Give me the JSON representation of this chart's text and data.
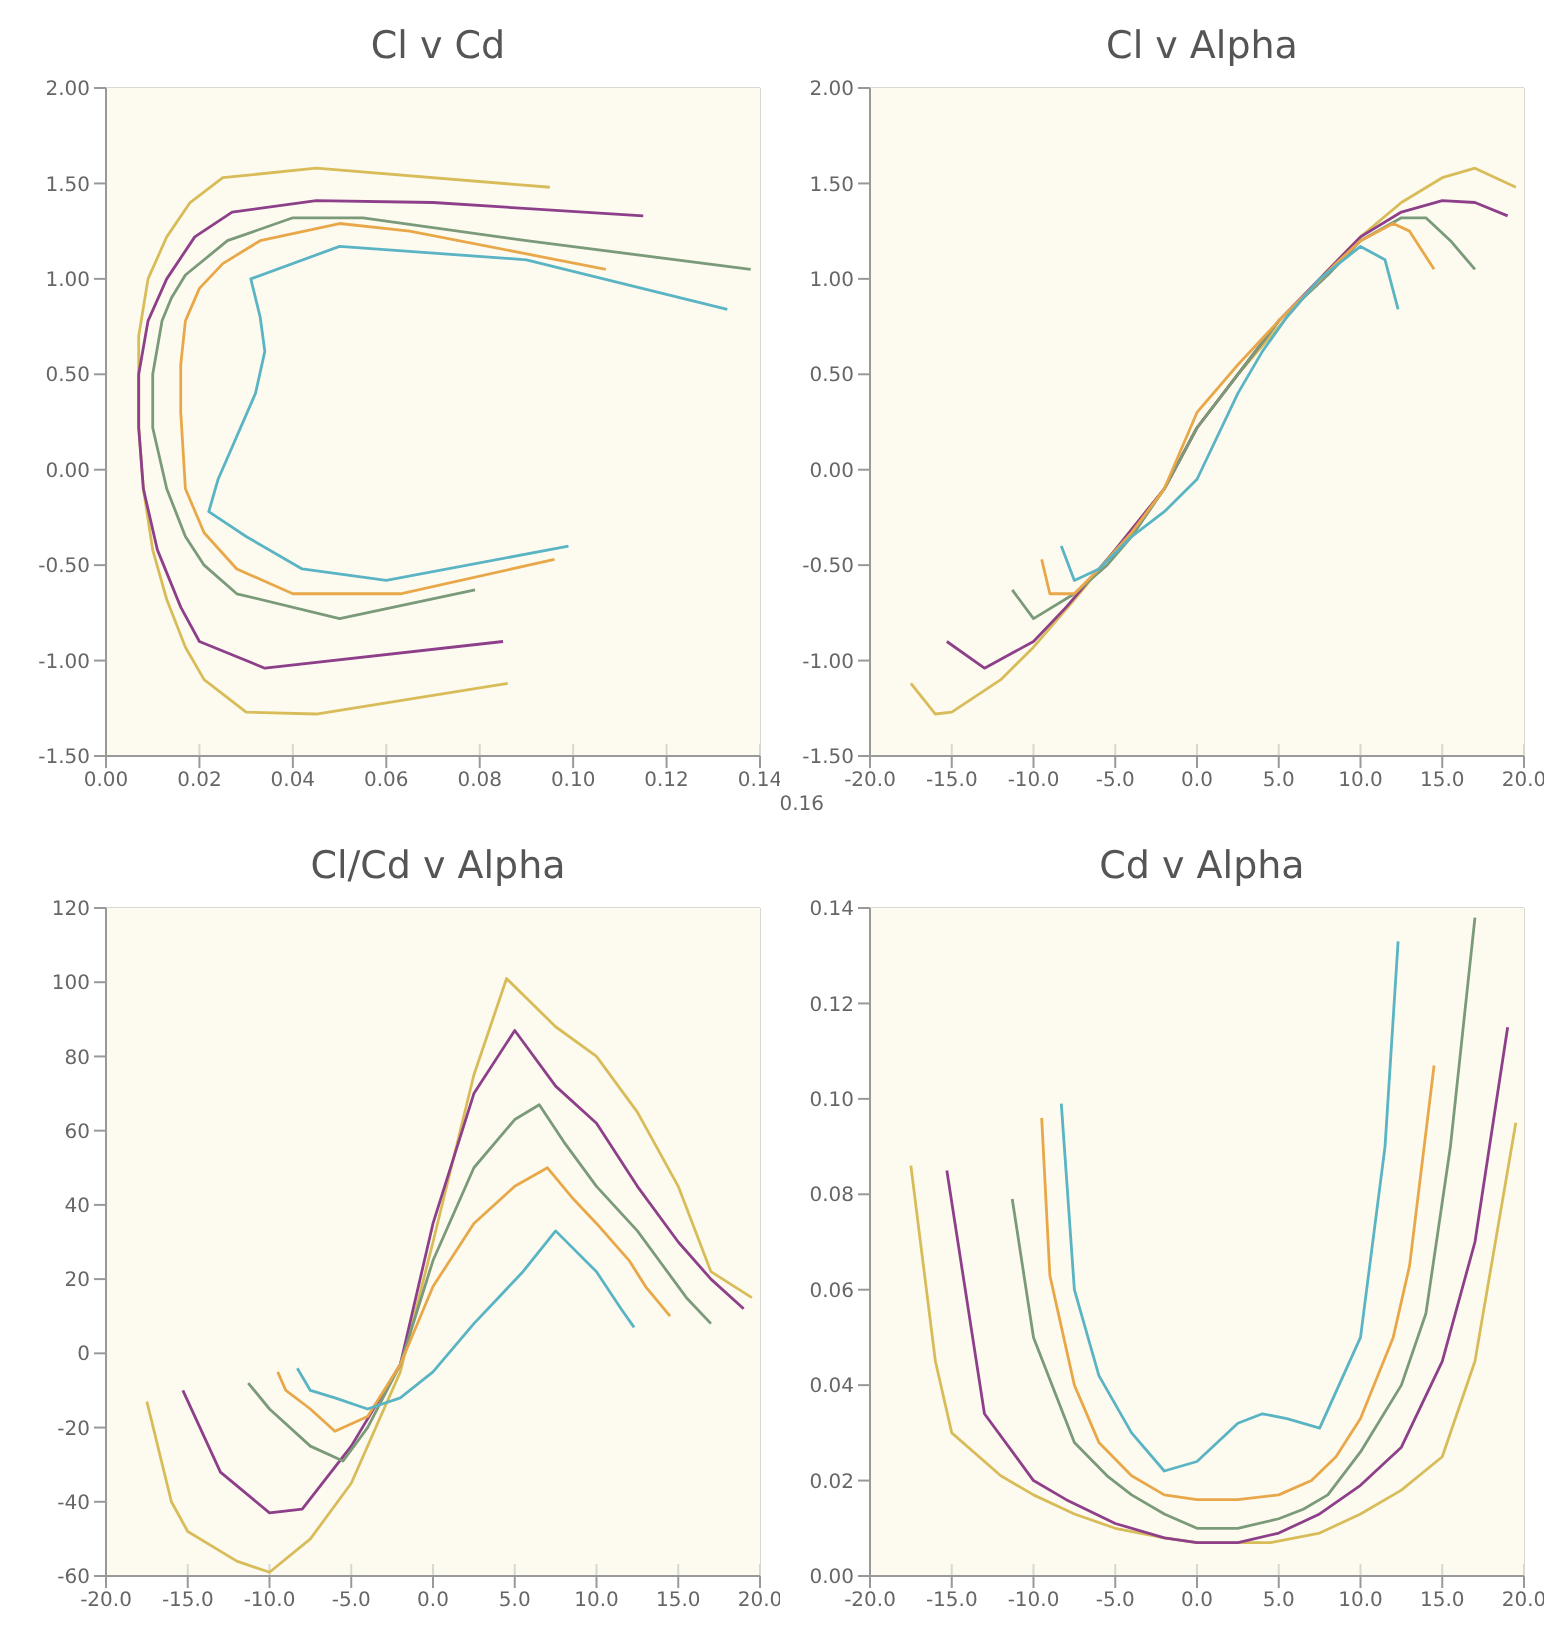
{
  "chart_data": [
    {
      "type": "line",
      "title": "Cl v Cd",
      "xlim": [
        0,
        0.14
      ],
      "ylim": [
        -1.5,
        2
      ],
      "xticks": [
        {
          "value": 0,
          "label": "0.00"
        },
        {
          "value": 0.02,
          "label": "0.02"
        },
        {
          "value": 0.04,
          "label": "0.04"
        },
        {
          "value": 0.06,
          "label": "0.06"
        },
        {
          "value": 0.08,
          "label": "0.08"
        },
        {
          "value": 0.1,
          "label": "0.10"
        },
        {
          "value": 0.12,
          "label": "0.12"
        },
        {
          "value": 0.14,
          "label": "0.14"
        }
      ],
      "yticks": [
        {
          "value": -1.5,
          "label": "-1.50"
        },
        {
          "value": -1,
          "label": "-1.00"
        },
        {
          "value": -0.5,
          "label": "-0.50"
        },
        {
          "value": 0,
          "label": "0.00"
        },
        {
          "value": 0.5,
          "label": "0.50"
        },
        {
          "value": 1,
          "label": "1.00"
        },
        {
          "value": 1.5,
          "label": "1.50"
        },
        {
          "value": 2,
          "label": "2.00"
        }
      ],
      "grid": true,
      "marker": "none",
      "line_style": "solid",
      "annotations": [
        "0.16"
      ],
      "series": [
        {
          "color": "#d9bc5a",
          "x": [
            0.086,
            0.045,
            0.03,
            0.021,
            0.017,
            0.013,
            0.01,
            0.008,
            0.007,
            0.007,
            0.007,
            0.009,
            0.013,
            0.018,
            0.025,
            0.045,
            0.095
          ],
          "values": [
            -1.12,
            -1.28,
            -1.27,
            -1.1,
            -0.93,
            -0.68,
            -0.42,
            -0.1,
            0.22,
            0.5,
            0.7,
            1.0,
            1.22,
            1.4,
            1.53,
            1.58,
            1.48
          ]
        },
        {
          "color": "#8e3f8a",
          "x": [
            0.085,
            0.034,
            0.02,
            0.016,
            0.011,
            0.008,
            0.007,
            0.007,
            0.009,
            0.013,
            0.019,
            0.027,
            0.045,
            0.07,
            0.115
          ],
          "values": [
            -0.9,
            -1.04,
            -0.9,
            -0.72,
            -0.42,
            -0.1,
            0.22,
            0.5,
            0.78,
            1.0,
            1.22,
            1.35,
            1.41,
            1.4,
            1.33
          ]
        },
        {
          "color": "#7a9a7a",
          "x": [
            0.079,
            0.05,
            0.028,
            0.021,
            0.017,
            0.013,
            0.01,
            0.01,
            0.012,
            0.014,
            0.017,
            0.026,
            0.04,
            0.055,
            0.09,
            0.138
          ],
          "values": [
            -0.63,
            -0.78,
            -0.65,
            -0.5,
            -0.35,
            -0.1,
            0.22,
            0.5,
            0.78,
            0.9,
            1.02,
            1.2,
            1.32,
            1.32,
            1.2,
            1.05
          ]
        },
        {
          "color": "#e8a84a",
          "x": [
            0.096,
            0.063,
            0.04,
            0.028,
            0.021,
            0.017,
            0.016,
            0.016,
            0.017,
            0.02,
            0.025,
            0.033,
            0.05,
            0.065,
            0.107
          ],
          "values": [
            -0.47,
            -0.65,
            -0.65,
            -0.52,
            -0.33,
            -0.1,
            0.3,
            0.55,
            0.78,
            0.95,
            1.08,
            1.2,
            1.29,
            1.25,
            1.05
          ]
        },
        {
          "color": "#5ab4c4",
          "x": [
            0.099,
            0.06,
            0.042,
            0.03,
            0.022,
            0.024,
            0.032,
            0.034,
            0.033,
            0.031,
            0.05,
            0.09,
            0.133
          ],
          "values": [
            -0.4,
            -0.58,
            -0.52,
            -0.35,
            -0.22,
            -0.05,
            0.4,
            0.62,
            0.8,
            1.0,
            1.17,
            1.1,
            0.84
          ]
        }
      ]
    },
    {
      "type": "line",
      "title": "Cl v Alpha",
      "xlim": [
        -20,
        20
      ],
      "ylim": [
        -1.5,
        2
      ],
      "xticks": [
        {
          "value": -20,
          "label": "-20.0"
        },
        {
          "value": -15,
          "label": "-15.0"
        },
        {
          "value": -10,
          "label": "-10.0"
        },
        {
          "value": -5,
          "label": "-5.0"
        },
        {
          "value": 0,
          "label": "0.0"
        },
        {
          "value": 5,
          "label": "5.0"
        },
        {
          "value": 10,
          "label": "10.0"
        },
        {
          "value": 15,
          "label": "15.0"
        },
        {
          "value": 20,
          "label": "20.0"
        }
      ],
      "yticks": [
        {
          "value": -1.5,
          "label": "-1.50"
        },
        {
          "value": -1,
          "label": "-1.00"
        },
        {
          "value": -0.5,
          "label": "-0.50"
        },
        {
          "value": 0,
          "label": "0.00"
        },
        {
          "value": 0.5,
          "label": "0.50"
        },
        {
          "value": 1,
          "label": "1.00"
        },
        {
          "value": 1.5,
          "label": "1.50"
        },
        {
          "value": 2,
          "label": "2.00"
        }
      ],
      "grid": true,
      "marker": "none",
      "line_style": "solid",
      "series": [
        {
          "color": "#d9bc5a",
          "x": [
            -17.5,
            -16,
            -15,
            -12,
            -10,
            -7.5,
            -5,
            -2,
            0,
            2.5,
            4.5,
            7.5,
            10,
            12.5,
            15,
            17,
            19.5
          ],
          "values": [
            -1.12,
            -1.28,
            -1.27,
            -1.1,
            -0.93,
            -0.68,
            -0.42,
            -0.1,
            0.22,
            0.5,
            0.7,
            1.0,
            1.22,
            1.4,
            1.53,
            1.58,
            1.48
          ]
        },
        {
          "color": "#8e3f8a",
          "x": [
            -15.3,
            -13,
            -10,
            -8,
            -5,
            -2,
            0,
            2.5,
            5,
            7.5,
            10,
            12.5,
            15,
            17,
            19
          ],
          "values": [
            -0.9,
            -1.04,
            -0.9,
            -0.72,
            -0.42,
            -0.1,
            0.22,
            0.5,
            0.78,
            1.0,
            1.22,
            1.35,
            1.41,
            1.4,
            1.33
          ]
        },
        {
          "color": "#7a9a7a",
          "x": [
            -11.3,
            -10,
            -7.5,
            -5.5,
            -4,
            -2,
            0,
            2.5,
            5,
            6.5,
            8,
            10,
            12.5,
            14,
            15.5,
            17
          ],
          "values": [
            -0.63,
            -0.78,
            -0.65,
            -0.5,
            -0.35,
            -0.1,
            0.22,
            0.5,
            0.78,
            0.9,
            1.02,
            1.2,
            1.32,
            1.32,
            1.2,
            1.05
          ]
        },
        {
          "color": "#e8a84a",
          "x": [
            -9.5,
            -9,
            -7.5,
            -6,
            -4,
            -2,
            0,
            2.5,
            5,
            7,
            8.5,
            10,
            12,
            13,
            14.5
          ],
          "values": [
            -0.47,
            -0.65,
            -0.65,
            -0.52,
            -0.33,
            -0.1,
            0.3,
            0.55,
            0.78,
            0.95,
            1.08,
            1.2,
            1.29,
            1.25,
            1.05
          ]
        },
        {
          "color": "#5ab4c4",
          "x": [
            -8.3,
            -7.5,
            -6,
            -4,
            -2,
            0,
            2.5,
            4,
            5.5,
            7.5,
            10,
            11.5,
            12.3
          ],
          "values": [
            -0.4,
            -0.58,
            -0.52,
            -0.35,
            -0.22,
            -0.05,
            0.4,
            0.62,
            0.8,
            1.0,
            1.17,
            1.1,
            0.84
          ]
        }
      ]
    },
    {
      "type": "line",
      "title": "Cl/Cd v Alpha",
      "xlim": [
        -20,
        20
      ],
      "ylim": [
        -60,
        120
      ],
      "xticks": [
        {
          "value": -20,
          "label": "-20.0"
        },
        {
          "value": -15,
          "label": "-15.0"
        },
        {
          "value": -10,
          "label": "-10.0"
        },
        {
          "value": -5,
          "label": "-5.0"
        },
        {
          "value": 0,
          "label": "0.0"
        },
        {
          "value": 5,
          "label": "5.0"
        },
        {
          "value": 10,
          "label": "10.0"
        },
        {
          "value": 15,
          "label": "15.0"
        },
        {
          "value": 20,
          "label": "20.0"
        }
      ],
      "yticks": [
        -60,
        -40,
        -20,
        0,
        20,
        40,
        60,
        80,
        100,
        120
      ],
      "grid": true,
      "marker": "none",
      "line_style": "solid",
      "series": [
        {
          "color": "#d9bc5a",
          "x": [
            -17.5,
            -16,
            -15,
            -12,
            -10,
            -7.5,
            -5,
            -2,
            0,
            2.5,
            4.5,
            7.5,
            10,
            12.5,
            15,
            17,
            19.5
          ],
          "values": [
            -13,
            -40,
            -48,
            -56,
            -59,
            -50,
            -35,
            -5,
            30,
            75,
            101,
            88,
            80,
            65,
            45,
            22,
            15
          ]
        },
        {
          "color": "#8e3f8a",
          "x": [
            -15.3,
            -13,
            -10,
            -8,
            -5,
            -2,
            0,
            2.5,
            5,
            7.5,
            10,
            12.5,
            15,
            17,
            19
          ],
          "values": [
            -10,
            -32,
            -43,
            -42,
            -25,
            -3,
            35,
            70,
            87,
            72,
            62,
            45,
            30,
            20,
            12
          ]
        },
        {
          "color": "#7a9a7a",
          "x": [
            -11.3,
            -10,
            -7.5,
            -5.5,
            -4,
            -2,
            0,
            2.5,
            5,
            6.5,
            8,
            10,
            12.5,
            14,
            15.5,
            17
          ],
          "values": [
            -8,
            -15,
            -25,
            -29,
            -20,
            -3,
            25,
            50,
            63,
            67,
            57,
            45,
            33,
            24,
            15,
            8
          ]
        },
        {
          "color": "#e8a84a",
          "x": [
            -9.5,
            -9,
            -7.5,
            -6,
            -4,
            -2,
            0,
            2.5,
            5,
            7,
            8.5,
            10,
            12,
            13,
            14.5
          ],
          "values": [
            -5,
            -10,
            -15,
            -21,
            -17,
            -3,
            18,
            35,
            45,
            50,
            42,
            35,
            25,
            18,
            10
          ]
        },
        {
          "color": "#5ab4c4",
          "x": [
            -8.3,
            -7.5,
            -6,
            -4,
            -2,
            0,
            2.5,
            4,
            5.5,
            7.5,
            10,
            11.5,
            12.3
          ],
          "values": [
            -4,
            -10,
            -12,
            -15,
            -12,
            -5,
            8,
            15,
            22,
            33,
            22,
            12,
            7
          ]
        }
      ]
    },
    {
      "type": "line",
      "title": "Cd v Alpha",
      "xlim": [
        -20,
        20
      ],
      "ylim": [
        0,
        0.14
      ],
      "xticks": [
        {
          "value": -20,
          "label": "-20.0"
        },
        {
          "value": -15,
          "label": "-15.0"
        },
        {
          "value": -10,
          "label": "-10.0"
        },
        {
          "value": -5,
          "label": "-5.0"
        },
        {
          "value": 0,
          "label": "0.0"
        },
        {
          "value": 5,
          "label": "5.0"
        },
        {
          "value": 10,
          "label": "10.0"
        },
        {
          "value": 15,
          "label": "15.0"
        },
        {
          "value": 20,
          "label": "20.0"
        }
      ],
      "yticks": [
        {
          "value": 0,
          "label": "0.00"
        },
        {
          "value": 0.02,
          "label": "0.02"
        },
        {
          "value": 0.04,
          "label": "0.04"
        },
        {
          "value": 0.06,
          "label": "0.06"
        },
        {
          "value": 0.08,
          "label": "0.08"
        },
        {
          "value": 0.1,
          "label": "0.10"
        },
        {
          "value": 0.12,
          "label": "0.12"
        },
        {
          "value": 0.14,
          "label": "0.14"
        }
      ],
      "grid": true,
      "marker": "none",
      "line_style": "solid",
      "series": [
        {
          "color": "#d9bc5a",
          "x": [
            -17.5,
            -16,
            -15,
            -12,
            -10,
            -7.5,
            -5,
            -2,
            0,
            2.5,
            4.5,
            7.5,
            10,
            12.5,
            15,
            17,
            19.5
          ],
          "values": [
            0.086,
            0.045,
            0.03,
            0.021,
            0.017,
            0.013,
            0.01,
            0.008,
            0.007,
            0.007,
            0.007,
            0.009,
            0.013,
            0.018,
            0.025,
            0.045,
            0.095
          ]
        },
        {
          "color": "#8e3f8a",
          "x": [
            -15.3,
            -13,
            -10,
            -8,
            -5,
            -2,
            0,
            2.5,
            5,
            7.5,
            10,
            12.5,
            15,
            17,
            19
          ],
          "values": [
            0.085,
            0.034,
            0.02,
            0.016,
            0.011,
            0.008,
            0.007,
            0.007,
            0.009,
            0.013,
            0.019,
            0.027,
            0.045,
            0.07,
            0.115
          ]
        },
        {
          "color": "#7a9a7a",
          "x": [
            -11.3,
            -10,
            -7.5,
            -5.5,
            -4,
            -2,
            0,
            2.5,
            5,
            6.5,
            8,
            10,
            12.5,
            14,
            15.5,
            17
          ],
          "values": [
            0.079,
            0.05,
            0.028,
            0.021,
            0.017,
            0.013,
            0.01,
            0.01,
            0.012,
            0.014,
            0.017,
            0.026,
            0.04,
            0.055,
            0.09,
            0.138
          ]
        },
        {
          "color": "#e8a84a",
          "x": [
            -9.5,
            -9,
            -7.5,
            -6,
            -4,
            -2,
            0,
            2.5,
            5,
            7,
            8.5,
            10,
            12,
            13,
            14.5
          ],
          "values": [
            0.096,
            0.063,
            0.04,
            0.028,
            0.021,
            0.017,
            0.016,
            0.016,
            0.017,
            0.02,
            0.025,
            0.033,
            0.05,
            0.065,
            0.107
          ]
        },
        {
          "color": "#5ab4c4",
          "x": [
            -8.3,
            -7.5,
            -6,
            -4,
            -2,
            0,
            2.5,
            4,
            5.5,
            7.5,
            10,
            11.5,
            12.3
          ],
          "values": [
            0.099,
            0.06,
            0.042,
            0.03,
            0.022,
            0.024,
            0.032,
            0.034,
            0.033,
            0.031,
            0.05,
            0.09,
            0.133
          ]
        }
      ]
    }
  ]
}
